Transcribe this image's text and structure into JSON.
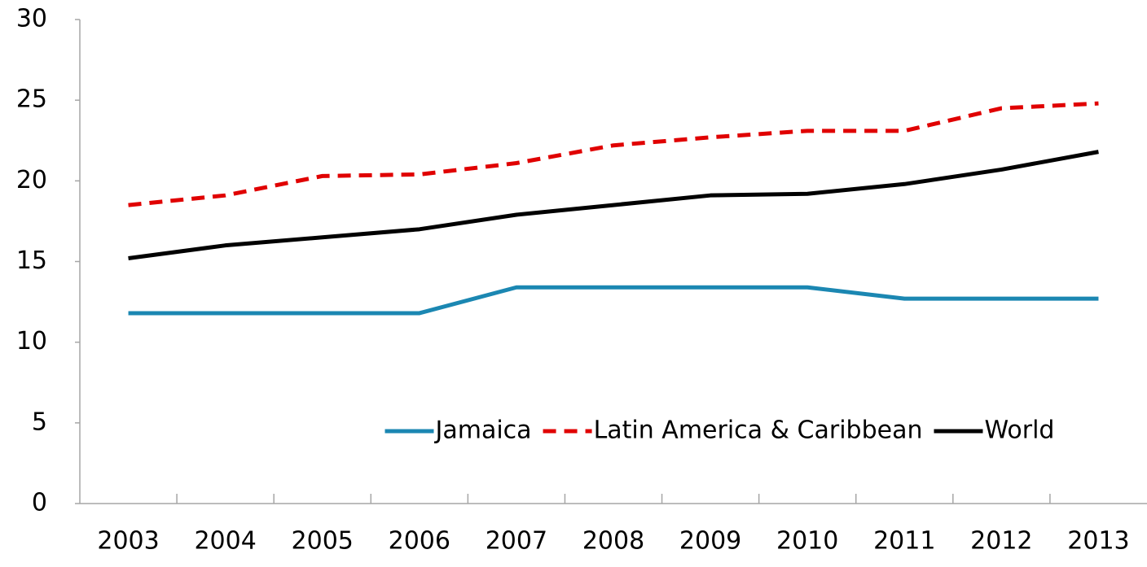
{
  "chart_data": {
    "type": "line",
    "categories": [
      "2003",
      "2004",
      "2005",
      "2006",
      "2007",
      "2008",
      "2009",
      "2010",
      "2011",
      "2012",
      "2013"
    ],
    "series": [
      {
        "name": "Jamaica",
        "color": "#1b87b2",
        "dashed": false,
        "values": [
          11.8,
          11.8,
          11.8,
          11.8,
          13.4,
          13.4,
          13.4,
          13.4,
          12.7,
          12.7,
          12.7
        ]
      },
      {
        "name": "Latin America & Caribbean",
        "color": "#e00000",
        "dashed": true,
        "values": [
          18.5,
          19.1,
          20.3,
          20.4,
          21.1,
          22.2,
          22.7,
          23.1,
          23.1,
          24.5,
          24.8
        ]
      },
      {
        "name": "World",
        "color": "#000000",
        "dashed": false,
        "values": [
          15.2,
          16.0,
          16.5,
          17.0,
          17.9,
          18.5,
          19.1,
          19.2,
          19.8,
          20.7,
          21.8
        ]
      }
    ],
    "ylim": [
      0,
      30
    ],
    "yticks": [
      0,
      5,
      10,
      15,
      20,
      25,
      30
    ],
    "grid": false,
    "legend": "lower right"
  }
}
